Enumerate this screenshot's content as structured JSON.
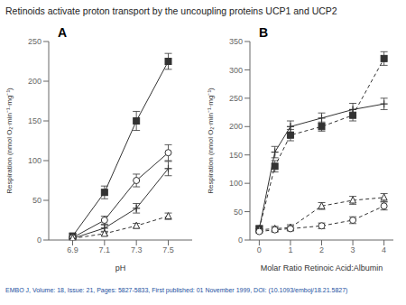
{
  "title": "Retinoids activate proton transport by the uncoupling proteins UCP1 and UCP2",
  "footer": "EMBO J, Volume: 18, Issue: 21, Pages: 5827-5833, First published: 01 November 1999, DOI: (10.1093/emboj/18.21.5827)",
  "footer_color": "#1a4fa0",
  "chart_data": [
    {
      "type": "line",
      "annotation": "A",
      "x_label": "pH",
      "y_label": "Respiration (nmol O₂·min⁻¹·mg⁻¹)",
      "xlim": [
        6.75,
        7.65
      ],
      "ylim": [
        0,
        250
      ],
      "xticks": [
        6.9,
        7.1,
        7.3,
        7.5
      ],
      "yticks": [
        0,
        50,
        100,
        150,
        200,
        250
      ],
      "series": [
        {
          "x": [
            6.9,
            7.1,
            7.3,
            7.5
          ],
          "values": [
            5,
            60,
            150,
            225
          ],
          "errors": [
            3,
            8,
            12,
            10
          ],
          "marker": "square",
          "line_style": "solid",
          "color": "#333333"
        },
        {
          "x": [
            6.9,
            7.1,
            7.3,
            7.5
          ],
          "values": [
            3,
            25,
            75,
            110
          ],
          "errors": [
            2,
            5,
            8,
            10
          ],
          "marker": "open_circle",
          "line_style": "solid",
          "color": "#333333"
        },
        {
          "x": [
            6.9,
            7.1,
            7.3,
            7.5
          ],
          "values": [
            2,
            15,
            40,
            90
          ],
          "errors": [
            2,
            4,
            6,
            9
          ],
          "marker": "plus",
          "line_style": "solid",
          "color": "#333333"
        },
        {
          "x": [
            6.9,
            7.1,
            7.3,
            7.5
          ],
          "values": [
            2,
            8,
            18,
            30
          ],
          "errors": [
            1,
            2,
            3,
            4
          ],
          "marker": "open_triangle",
          "line_style": "dashed",
          "color": "#333333"
        }
      ]
    },
    {
      "type": "line",
      "annotation": "B",
      "x_label": "Molar Ratio Retinoic Acid:Albumin",
      "y_label": "Respiration (nmol O₂·min⁻¹·mg⁻¹)",
      "xlim": [
        -0.3,
        4.3
      ],
      "ylim": [
        0,
        350
      ],
      "xticks": [
        0,
        1,
        2,
        3,
        4
      ],
      "yticks": [
        0,
        50,
        100,
        150,
        200,
        250,
        300,
        350
      ],
      "series": [
        {
          "x": [
            0,
            0.5,
            1,
            2,
            3,
            4
          ],
          "values": [
            20,
            130,
            185,
            200,
            220,
            320
          ],
          "errors": [
            5,
            10,
            10,
            8,
            10,
            12
          ],
          "marker": "square",
          "line_style": "dashed",
          "color": "#333333"
        },
        {
          "x": [
            0,
            0.5,
            1,
            2,
            3,
            4
          ],
          "values": [
            20,
            155,
            200,
            215,
            230,
            240
          ],
          "errors": [
            4,
            10,
            10,
            9,
            11,
            10
          ],
          "marker": "plus",
          "line_style": "solid",
          "color": "#333333"
        },
        {
          "x": [
            0,
            0.5,
            1,
            2,
            3,
            4
          ],
          "values": [
            18,
            20,
            22,
            60,
            70,
            75
          ],
          "errors": [
            3,
            4,
            5,
            6,
            7,
            7
          ],
          "marker": "open_triangle",
          "line_style": "dashed",
          "color": "#333333"
        },
        {
          "x": [
            0,
            0.5,
            1,
            2,
            3,
            4
          ],
          "values": [
            15,
            18,
            20,
            25,
            35,
            60
          ],
          "errors": [
            3,
            4,
            4,
            5,
            6,
            7
          ],
          "marker": "open_circle",
          "line_style": "dashed",
          "color": "#333333"
        }
      ]
    }
  ]
}
